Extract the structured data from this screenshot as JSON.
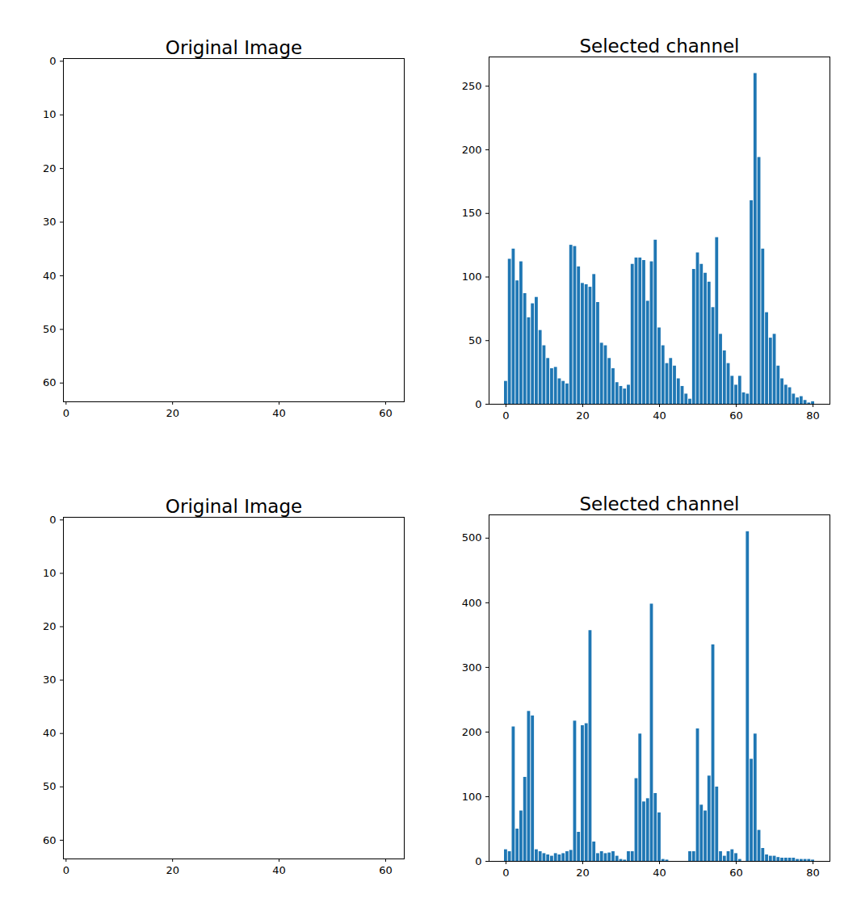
{
  "chart_data": [
    {
      "type": "image",
      "title": "Original Image",
      "xlim": [
        -0.5,
        63.5
      ],
      "ylim": [
        63.5,
        -0.5
      ],
      "xticks": [
        0,
        20,
        40,
        60
      ],
      "yticks": [
        0,
        10,
        20,
        30,
        40,
        50,
        60
      ]
    },
    {
      "type": "bar",
      "title": "Selected channel",
      "color": "#1f77b4",
      "x": [
        0,
        1,
        2,
        3,
        4,
        5,
        6,
        7,
        8,
        9,
        10,
        11,
        12,
        13,
        14,
        15,
        16,
        17,
        18,
        19,
        20,
        21,
        22,
        23,
        24,
        25,
        26,
        27,
        28,
        29,
        30,
        31,
        32,
        33,
        34,
        35,
        36,
        37,
        38,
        39,
        40,
        41,
        42,
        43,
        44,
        45,
        46,
        47,
        48,
        49,
        50,
        51,
        52,
        53,
        54,
        55,
        56,
        57,
        58,
        59,
        60,
        61,
        62,
        63,
        64,
        65,
        66,
        67,
        68,
        69,
        70,
        71,
        72,
        73,
        74,
        75,
        76,
        77,
        78,
        79,
        80
      ],
      "values": [
        18,
        114,
        122,
        97,
        112,
        87,
        68,
        79,
        84,
        58,
        46,
        36,
        28,
        29,
        20,
        18,
        16,
        125,
        124,
        108,
        95,
        94,
        92,
        102,
        80,
        48,
        46,
        36,
        28,
        17,
        14,
        12,
        15,
        110,
        115,
        115,
        113,
        81,
        112,
        129,
        60,
        46,
        32,
        36,
        30,
        20,
        14,
        8,
        4,
        106,
        119,
        110,
        103,
        96,
        76,
        131,
        55,
        42,
        32,
        22,
        15,
        22,
        9,
        8,
        160,
        260,
        194,
        122,
        72,
        52,
        55,
        30,
        20,
        15,
        13,
        8,
        5,
        6,
        3,
        1,
        2
      ],
      "xlim": [
        -4.4,
        84.4
      ],
      "ylim": [
        0,
        273
      ],
      "xticks": [
        0,
        20,
        40,
        60,
        80
      ],
      "yticks": [
        0,
        50,
        100,
        150,
        200,
        250
      ]
    },
    {
      "type": "image",
      "title": "Original Image",
      "xlim": [
        -0.5,
        63.5
      ],
      "ylim": [
        63.5,
        -0.5
      ],
      "xticks": [
        0,
        20,
        40,
        60
      ],
      "yticks": [
        0,
        10,
        20,
        30,
        40,
        50,
        60
      ]
    },
    {
      "type": "bar",
      "title": "Selected channel",
      "color": "#1f77b4",
      "x": [
        0,
        1,
        2,
        3,
        4,
        5,
        6,
        7,
        8,
        9,
        10,
        11,
        12,
        13,
        14,
        15,
        16,
        17,
        18,
        19,
        20,
        21,
        22,
        23,
        24,
        25,
        26,
        27,
        28,
        29,
        30,
        31,
        32,
        33,
        34,
        35,
        36,
        37,
        38,
        39,
        40,
        41,
        42,
        43,
        44,
        45,
        46,
        47,
        48,
        49,
        50,
        51,
        52,
        53,
        54,
        55,
        56,
        57,
        58,
        59,
        60,
        61,
        62,
        63,
        64,
        65,
        66,
        67,
        68,
        69,
        70,
        71,
        72,
        73,
        74,
        75,
        76,
        77,
        78,
        79,
        80
      ],
      "values": [
        18,
        15,
        208,
        50,
        78,
        130,
        232,
        225,
        18,
        15,
        12,
        10,
        8,
        12,
        10,
        12,
        15,
        17,
        217,
        45,
        210,
        213,
        357,
        30,
        12,
        15,
        12,
        13,
        15,
        8,
        3,
        2,
        15,
        15,
        128,
        197,
        92,
        97,
        398,
        105,
        75,
        3,
        2,
        0,
        0,
        0,
        0,
        0,
        15,
        15,
        205,
        87,
        78,
        132,
        335,
        115,
        15,
        8,
        15,
        18,
        12,
        3,
        0,
        510,
        158,
        197,
        48,
        20,
        10,
        8,
        8,
        6,
        5,
        5,
        5,
        5,
        3,
        3,
        3,
        3,
        2
      ],
      "xlim": [
        -4.4,
        84.4
      ],
      "ylim": [
        0,
        536
      ],
      "xticks": [
        0,
        20,
        40,
        60,
        80
      ],
      "yticks": [
        0,
        100,
        200,
        300,
        400,
        500
      ]
    }
  ]
}
